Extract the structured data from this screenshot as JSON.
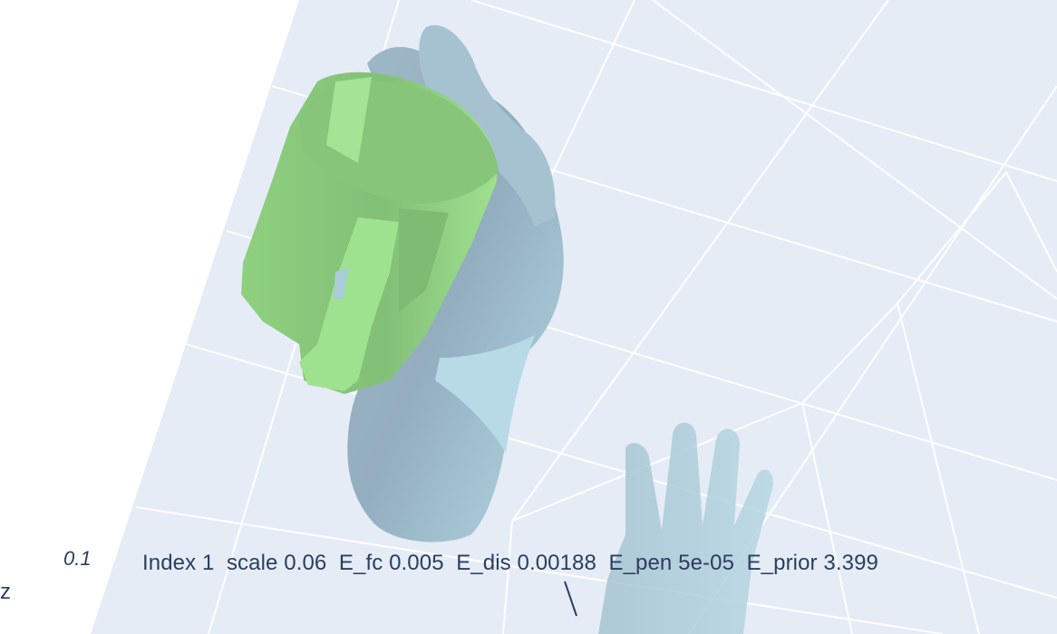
{
  "figure": {
    "caption": "Index 1  scale 0.06  E_fc 0.005  E_dis 0.00188  E_pen 5e-05  E_prior 3.399",
    "axis_tick_label": "0.1",
    "axis_title": "z"
  },
  "colors": {
    "scene_background": "#e5ecf6",
    "page_background": "#ffffff",
    "grid_line": "#ffffff",
    "object_mesh": "#90d982",
    "hand_mesh": "#a8ccd8",
    "text": "#2a3f5f"
  }
}
